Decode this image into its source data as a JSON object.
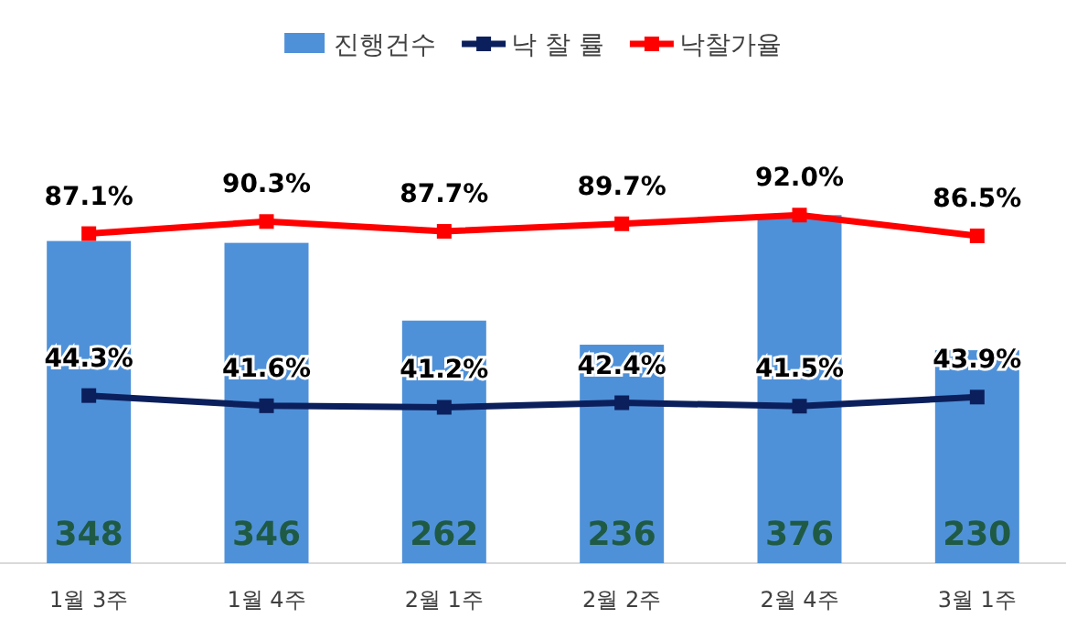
{
  "chart_data": {
    "type": "bar",
    "categories": [
      "1월 3주",
      "1월 4주",
      "2월 1주",
      "2월 2주",
      "2월 4주",
      "3월 1주"
    ],
    "series": [
      {
        "name": "진행건수",
        "color": "#4f91d8",
        "values": [
          348,
          346,
          262,
          236,
          376,
          230
        ],
        "value_labels": [
          "348",
          "346",
          "262",
          "236",
          "376",
          "230"
        ]
      },
      {
        "name": "낙 찰 률",
        "type": "line",
        "axis": "y2",
        "color": "#0b1f5c",
        "marker": "square",
        "values": [
          44.3,
          41.6,
          41.2,
          42.4,
          41.5,
          43.9
        ],
        "value_labels": [
          "44.3%",
          "41.6%",
          "41.2%",
          "42.4%",
          "41.5%",
          "43.9%"
        ]
      },
      {
        "name": "낙찰가율",
        "type": "line",
        "axis": "y2",
        "color": "#ff0000",
        "marker": "square",
        "values": [
          87.1,
          90.3,
          87.7,
          89.7,
          92.0,
          86.5
        ],
        "value_labels": [
          "87.1%",
          "90.3%",
          "87.7%",
          "89.7%",
          "92.0%",
          "86.5%"
        ]
      }
    ],
    "legend": "top"
  }
}
